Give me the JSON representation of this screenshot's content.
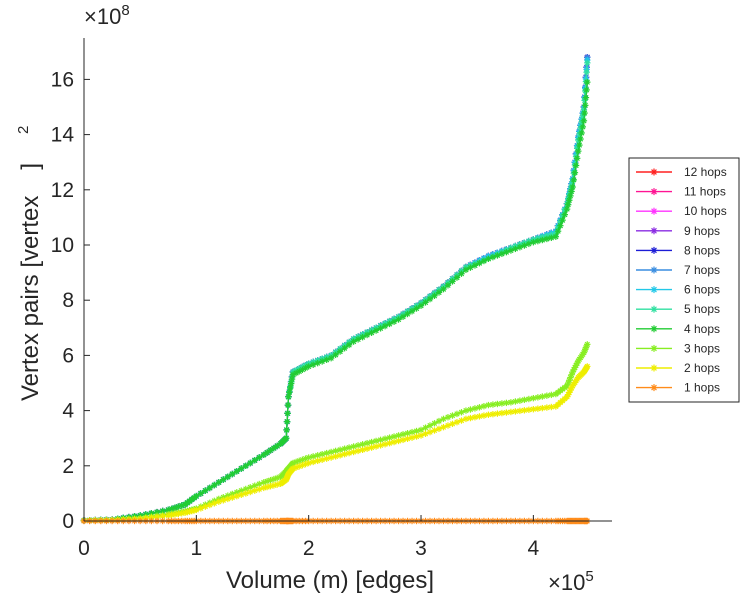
{
  "chart_data": {
    "type": "line",
    "xlabel": "Volume (m) [edges]",
    "ylabel": "Vertex pairs [vertex",
    "ylabel_sup": "2",
    "ylabel_close": "]",
    "x_multiplier": "×10",
    "x_multiplier_exp": "5",
    "y_multiplier": "×10",
    "y_multiplier_exp": "8",
    "xlim": [
      0,
      4.7
    ],
    "ylim": [
      0,
      17.5
    ],
    "xticks": [
      "0",
      "1",
      "2",
      "3",
      "4"
    ],
    "yticks": [
      "0",
      "2",
      "4",
      "6",
      "8",
      "10",
      "12",
      "14",
      "16"
    ],
    "legend_position": "right",
    "x": [
      0,
      0.25,
      0.5,
      0.75,
      0.9,
      1.0,
      1.2,
      1.4,
      1.6,
      1.75,
      1.8,
      1.82,
      1.86,
      2.0,
      2.2,
      2.4,
      2.6,
      2.8,
      3.0,
      3.2,
      3.4,
      3.6,
      3.8,
      4.0,
      4.2,
      4.3,
      4.35,
      4.4,
      4.45,
      4.48
    ],
    "series": [
      {
        "name": "12 hops",
        "color": "#ff2020",
        "values": [
          0.02,
          0.05,
          0.2,
          0.4,
          0.6,
          0.9,
          1.4,
          1.9,
          2.4,
          2.8,
          3.0,
          4.5,
          5.4,
          5.7,
          6.0,
          6.6,
          7.0,
          7.4,
          7.9,
          8.5,
          9.2,
          9.6,
          9.9,
          10.2,
          10.5,
          11.5,
          12.4,
          13.9,
          15.0,
          16.8
        ]
      },
      {
        "name": "11 hops",
        "color": "#ff1493",
        "values": [
          0.02,
          0.05,
          0.2,
          0.4,
          0.6,
          0.9,
          1.4,
          1.9,
          2.4,
          2.8,
          3.0,
          4.5,
          5.4,
          5.7,
          6.0,
          6.6,
          7.0,
          7.4,
          7.9,
          8.5,
          9.2,
          9.6,
          9.9,
          10.2,
          10.5,
          11.5,
          12.4,
          13.9,
          15.0,
          16.8
        ]
      },
      {
        "name": "10 hops",
        "color": "#ff33ff",
        "values": [
          0.02,
          0.05,
          0.2,
          0.4,
          0.6,
          0.9,
          1.4,
          1.9,
          2.4,
          2.8,
          3.0,
          4.5,
          5.4,
          5.7,
          6.0,
          6.6,
          7.0,
          7.4,
          7.9,
          8.5,
          9.2,
          9.6,
          9.9,
          10.2,
          10.5,
          11.5,
          12.4,
          13.9,
          15.0,
          16.8
        ]
      },
      {
        "name": "9 hops",
        "color": "#8a2be2",
        "values": [
          0.02,
          0.05,
          0.2,
          0.4,
          0.6,
          0.9,
          1.4,
          1.9,
          2.4,
          2.8,
          3.0,
          4.5,
          5.4,
          5.7,
          6.0,
          6.6,
          7.0,
          7.4,
          7.9,
          8.5,
          9.2,
          9.6,
          9.9,
          10.2,
          10.5,
          11.5,
          12.4,
          13.9,
          15.0,
          16.8
        ]
      },
      {
        "name": "8 hops",
        "color": "#1c1cd6",
        "values": [
          0.02,
          0.05,
          0.2,
          0.4,
          0.6,
          0.9,
          1.4,
          1.9,
          2.4,
          2.8,
          3.0,
          4.5,
          5.4,
          5.7,
          6.0,
          6.6,
          7.0,
          7.4,
          7.9,
          8.5,
          9.2,
          9.6,
          9.9,
          10.2,
          10.5,
          11.5,
          12.4,
          13.9,
          15.0,
          16.8
        ]
      },
      {
        "name": "7 hops",
        "color": "#3a8de0",
        "values": [
          0.02,
          0.05,
          0.2,
          0.4,
          0.6,
          0.9,
          1.4,
          1.9,
          2.4,
          2.8,
          3.0,
          4.5,
          5.4,
          5.7,
          6.0,
          6.6,
          7.0,
          7.4,
          7.9,
          8.5,
          9.2,
          9.6,
          9.9,
          10.2,
          10.5,
          11.5,
          12.4,
          13.9,
          15.0,
          16.8
        ]
      },
      {
        "name": "6 hops",
        "color": "#22c8e8",
        "values": [
          0.02,
          0.05,
          0.2,
          0.4,
          0.6,
          0.9,
          1.4,
          1.9,
          2.4,
          2.8,
          3.0,
          4.5,
          5.4,
          5.7,
          6.0,
          6.6,
          7.0,
          7.4,
          7.9,
          8.5,
          9.2,
          9.6,
          9.9,
          10.2,
          10.5,
          11.5,
          12.4,
          13.9,
          15.0,
          16.7
        ]
      },
      {
        "name": "5 hops",
        "color": "#2fe0a0",
        "values": [
          0.02,
          0.05,
          0.2,
          0.4,
          0.6,
          0.9,
          1.4,
          1.9,
          2.4,
          2.8,
          3.0,
          4.5,
          5.4,
          5.7,
          6.0,
          6.6,
          7.0,
          7.4,
          7.9,
          8.5,
          9.2,
          9.5,
          9.9,
          10.2,
          10.4,
          11.5,
          12.3,
          13.8,
          14.9,
          16.6
        ]
      },
      {
        "name": "4 hops",
        "color": "#22cc33",
        "values": [
          0.02,
          0.05,
          0.2,
          0.4,
          0.6,
          0.9,
          1.4,
          1.9,
          2.4,
          2.8,
          3.0,
          4.5,
          5.3,
          5.6,
          5.9,
          6.5,
          6.9,
          7.3,
          7.8,
          8.4,
          9.1,
          9.5,
          9.8,
          10.1,
          10.3,
          11.3,
          12.1,
          13.4,
          14.5,
          15.9
        ]
      },
      {
        "name": "3 hops",
        "color": "#88ee22",
        "values": [
          0.02,
          0.04,
          0.1,
          0.25,
          0.35,
          0.45,
          0.8,
          1.1,
          1.4,
          1.6,
          1.8,
          1.9,
          2.1,
          2.3,
          2.5,
          2.7,
          2.9,
          3.1,
          3.3,
          3.7,
          4.0,
          4.2,
          4.3,
          4.45,
          4.6,
          4.9,
          5.4,
          5.8,
          6.1,
          6.4
        ]
      },
      {
        "name": "2 hops",
        "color": "#eeee00",
        "values": [
          0.01,
          0.03,
          0.08,
          0.2,
          0.3,
          0.4,
          0.7,
          0.95,
          1.2,
          1.35,
          1.5,
          1.7,
          1.9,
          2.1,
          2.3,
          2.5,
          2.7,
          2.9,
          3.1,
          3.4,
          3.7,
          3.85,
          3.95,
          4.05,
          4.15,
          4.5,
          4.9,
          5.2,
          5.4,
          5.6
        ]
      },
      {
        "name": "1 hops",
        "color": "#ff8c1a",
        "values": [
          0,
          0,
          0,
          0,
          0,
          0,
          0,
          0,
          0,
          0,
          0,
          0,
          0,
          0,
          0,
          0,
          0,
          0,
          0,
          0,
          0,
          0,
          0,
          0,
          0,
          0,
          0,
          0,
          0,
          0
        ]
      }
    ]
  }
}
